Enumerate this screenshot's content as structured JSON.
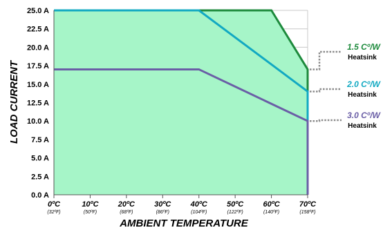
{
  "chart_data": {
    "type": "area",
    "xlabel": "AMBIENT TEMPERATURE",
    "ylabel": "LOAD CURRENT",
    "xlim": [
      0,
      70
    ],
    "ylim": [
      0,
      25
    ],
    "y_ticks": [
      {
        "value": 0,
        "label": "0.0 A"
      },
      {
        "value": 2.5,
        "label": "2.5 A"
      },
      {
        "value": 5,
        "label": "5.0 A"
      },
      {
        "value": 7.5,
        "label": "7.5 A"
      },
      {
        "value": 10,
        "label": "10.0 A"
      },
      {
        "value": 12.5,
        "label": "12.5 A"
      },
      {
        "value": 15,
        "label": "15.0 A"
      },
      {
        "value": 17.5,
        "label": "17.5 A"
      },
      {
        "value": 20,
        "label": "20.0 A"
      },
      {
        "value": 22.5,
        "label": "22.5 A"
      },
      {
        "value": 25,
        "label": "25.0 A"
      }
    ],
    "x_ticks": [
      {
        "value": 0,
        "label": "0ºC",
        "sub": "(32ºF)"
      },
      {
        "value": 10,
        "label": "10ºC",
        "sub": "(50ºF)"
      },
      {
        "value": 20,
        "label": "20ºC",
        "sub": "(68ºF)"
      },
      {
        "value": 30,
        "label": "30ºC",
        "sub": "(86ºF)"
      },
      {
        "value": 40,
        "label": "40ºC",
        "sub": "(104ºF)"
      },
      {
        "value": 50,
        "label": "50ºC",
        "sub": "(122ºF)"
      },
      {
        "value": 60,
        "label": "60ºC",
        "sub": "(140ºF)"
      },
      {
        "value": 70,
        "label": "70ºC",
        "sub": "(158ºF)"
      }
    ],
    "grid": true,
    "fill_color": "#a6f5c8",
    "series": [
      {
        "name": "1.5 Cº/W",
        "sub": "Heatsink",
        "color": "#1d8a3c",
        "points": [
          [
            0,
            25
          ],
          [
            60,
            25
          ],
          [
            70,
            17
          ]
        ]
      },
      {
        "name": "2.0 Cº/W",
        "sub": "Heatsink",
        "color": "#12a9c2",
        "points": [
          [
            0,
            25
          ],
          [
            40,
            25
          ],
          [
            70,
            14
          ]
        ]
      },
      {
        "name": "3.0 Cº/W",
        "sub": "Heatsink",
        "color": "#6a5ea6",
        "points": [
          [
            0,
            17
          ],
          [
            40,
            17
          ],
          [
            70,
            10
          ]
        ]
      }
    ],
    "legend": "right"
  }
}
